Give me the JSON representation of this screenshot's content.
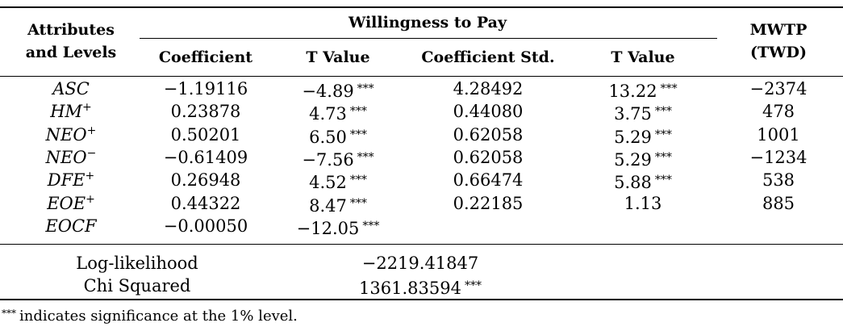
{
  "table": {
    "headers": {
      "attributes_line1": "Attributes",
      "attributes_line2": "and Levels",
      "group": "Willingness to Pay",
      "coefficient": "Coefficient",
      "t_value": "T Value",
      "coefficient_std": "Coefficient Std.",
      "t_value_2": "T Value",
      "mwtp_line1": "MWTP",
      "mwtp_line2": "(TWD)"
    },
    "rows": [
      {
        "attr": "ASC",
        "sup": "",
        "coef": "−1.19116",
        "t1": "−4.89",
        "t1_sig": "***",
        "std": "4.28492",
        "t2": "13.22",
        "t2_sig": "***",
        "mwtp": "−2374"
      },
      {
        "attr": "HM",
        "sup": "+",
        "coef": "0.23878",
        "t1": "4.73",
        "t1_sig": "***",
        "std": "0.44080",
        "t2": "3.75",
        "t2_sig": "***",
        "mwtp": "478"
      },
      {
        "attr": "NEO",
        "sup": "+",
        "coef": "0.50201",
        "t1": "6.50",
        "t1_sig": "***",
        "std": "0.62058",
        "t2": "5.29",
        "t2_sig": "***",
        "mwtp": "1001"
      },
      {
        "attr": "NEO",
        "sup": "−",
        "coef": "−0.61409",
        "t1": "−7.56",
        "t1_sig": "***",
        "std": "0.62058",
        "t2": "5.29",
        "t2_sig": "***",
        "mwtp": "−1234"
      },
      {
        "attr": "DFE",
        "sup": "+",
        "coef": "0.26948",
        "t1": "4.52",
        "t1_sig": "***",
        "std": "0.66474",
        "t2": "5.88",
        "t2_sig": "***",
        "mwtp": "538"
      },
      {
        "attr": "EOE",
        "sup": "+",
        "coef": "0.44322",
        "t1": "8.47",
        "t1_sig": "***",
        "std": "0.22185",
        "t2": "1.13",
        "t2_sig": "",
        "mwtp": "885"
      },
      {
        "attr": "EOCF",
        "sup": "",
        "coef": "−0.00050",
        "t1": "−12.05",
        "t1_sig": "***",
        "std": "",
        "t2": "",
        "t2_sig": "",
        "mwtp": ""
      }
    ],
    "stats": {
      "loglik_label": "Log-likelihood",
      "loglik_value": "−2219.41847",
      "chi_label": "Chi Squared",
      "chi_value": "1361.83594",
      "chi_sig": "***"
    },
    "note": {
      "sig": "***",
      "text": "indicates significance at the 1% level."
    }
  }
}
